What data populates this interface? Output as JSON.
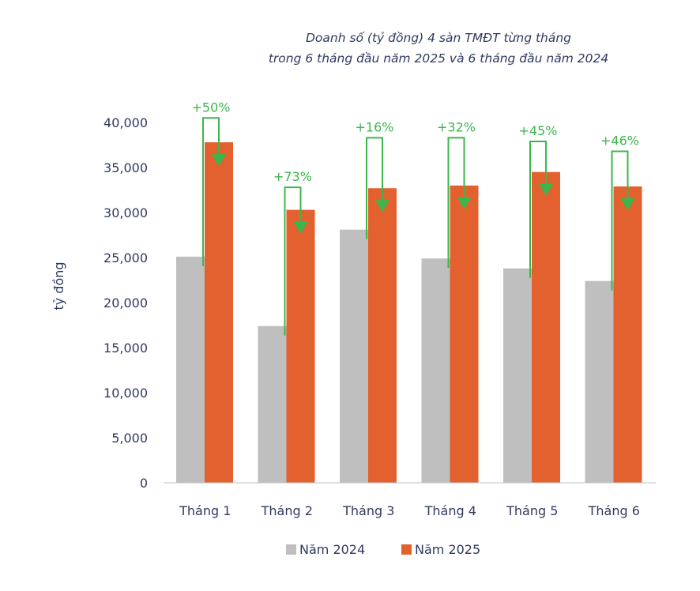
{
  "chart_data": {
    "type": "bar",
    "title_lines": [
      "Doanh số (tỷ đồng) 4 sàn TMĐT từng tháng",
      "trong 6 tháng đầu năm 2025 và 6 tháng đầu năm 2024"
    ],
    "ylabel": "tỷ đồng",
    "xlabel": "",
    "ylim": [
      0,
      40000
    ],
    "yticks": [
      0,
      5000,
      10000,
      15000,
      20000,
      25000,
      30000,
      35000,
      40000
    ],
    "ytick_labels": [
      "0",
      "5,000",
      "10,000",
      "15,000",
      "20,000",
      "25,000",
      "30,000",
      "35,000",
      "40,000"
    ],
    "categories": [
      "Tháng 1",
      "Tháng 2",
      "Tháng 3",
      "Tháng 4",
      "Tháng 5",
      "Tháng 6"
    ],
    "series": [
      {
        "name": "Năm 2024",
        "color": "#bfbfbf",
        "values": [
          25100,
          17400,
          28100,
          24900,
          23800,
          22400
        ]
      },
      {
        "name": "Năm 2025",
        "color": "#e3612f",
        "values": [
          37800,
          30300,
          32700,
          33000,
          34500,
          32900
        ]
      }
    ],
    "growth_labels": [
      "+50%",
      "+73%",
      "+16%",
      "+32%",
      "+45%",
      "+46%"
    ],
    "growth_peaks": [
      40500,
      32800,
      38300,
      38300,
      37900,
      36800
    ],
    "annotation_color": "#3cb64c",
    "legend_position": "bottom",
    "grid": false
  }
}
